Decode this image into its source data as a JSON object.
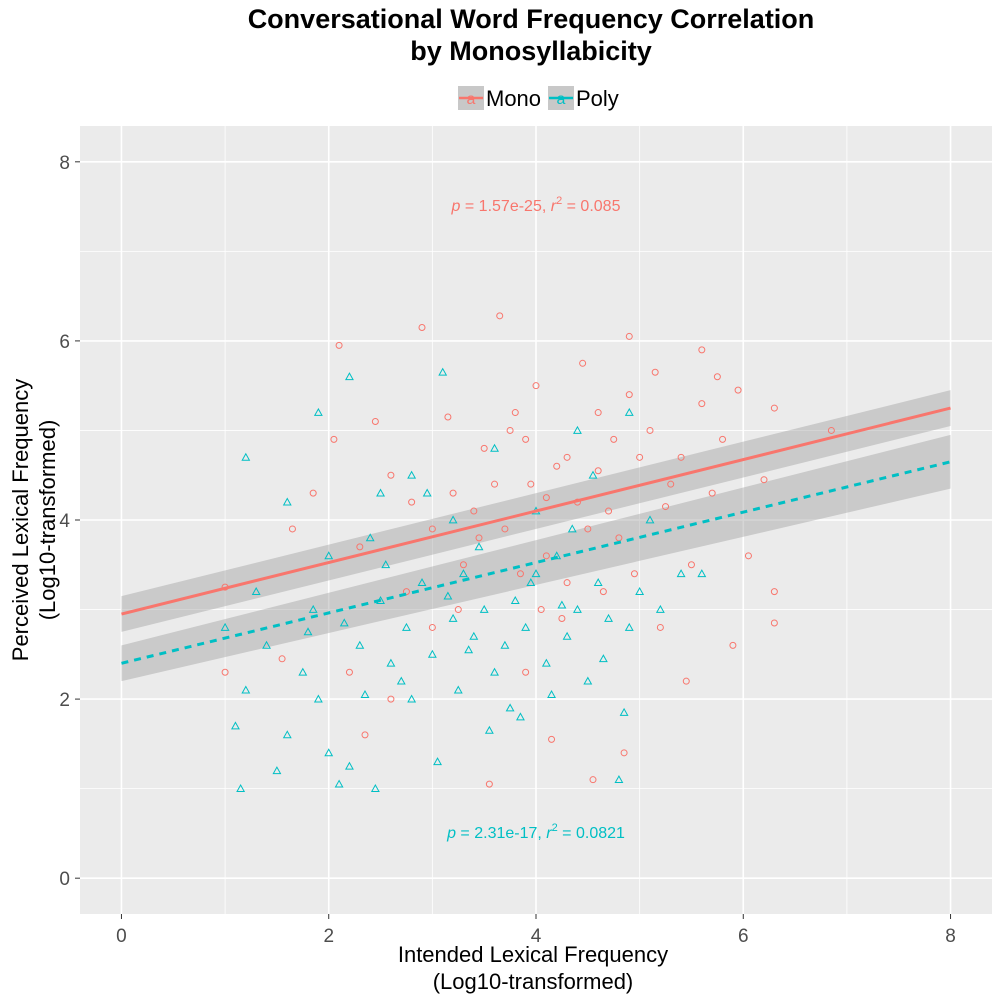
{
  "chart_data": {
    "type": "scatter",
    "title": [
      "Conversational Word Frequency Correlation",
      "by Monosyllabicity"
    ],
    "xlabel": [
      "Intended Lexical Frequency",
      "(Log10-transformed)"
    ],
    "ylabel": [
      "Perceived Lexical Frequency",
      "(Log10-transformed)"
    ],
    "xlim": [
      -0.4,
      8.4
    ],
    "ylim": [
      -0.4,
      8.4
    ],
    "x_ticks": [
      "0",
      "2",
      "4",
      "6",
      "8"
    ],
    "y_ticks": [
      "0",
      "2",
      "4",
      "6",
      "8"
    ],
    "grid": true,
    "legend_position": "top",
    "legend_glyph": "a",
    "series": [
      {
        "name": "Mono",
        "marker": "circle",
        "color": "#f8766d",
        "regression": {
          "x": [
            0,
            8
          ],
          "y": [
            2.95,
            5.25
          ],
          "ci_start": [
            2.75,
            3.15
          ],
          "ci_end": [
            5.05,
            5.45
          ],
          "linestyle": "solid"
        },
        "annotation": {
          "p": "1.57e-25",
          "r2": "0.085",
          "x": 4.0,
          "y": 7.45
        },
        "points": [
          [
            3.2,
            4.3
          ],
          [
            3.5,
            4.8
          ],
          [
            4.2,
            4.6
          ],
          [
            4.6,
            5.2
          ],
          [
            5.0,
            4.7
          ],
          [
            3.7,
            3.9
          ],
          [
            4.1,
            3.6
          ],
          [
            2.8,
            4.2
          ],
          [
            5.3,
            4.4
          ],
          [
            4.8,
            3.8
          ],
          [
            2.3,
            3.7
          ],
          [
            3.4,
            4.1
          ],
          [
            4.4,
            4.2
          ],
          [
            3.9,
            4.9
          ],
          [
            5.6,
            5.3
          ],
          [
            4.0,
            5.5
          ],
          [
            3.3,
            3.5
          ],
          [
            4.7,
            4.1
          ],
          [
            2.6,
            4.5
          ],
          [
            5.1,
            5.0
          ],
          [
            4.3,
            3.3
          ],
          [
            3.6,
            4.4
          ],
          [
            4.9,
            5.4
          ],
          [
            3.0,
            3.9
          ],
          [
            5.8,
            4.9
          ],
          [
            4.5,
            3.9
          ],
          [
            3.8,
            5.2
          ],
          [
            2.1,
            5.95
          ],
          [
            2.9,
            6.15
          ],
          [
            3.65,
            6.28
          ],
          [
            4.9,
            6.05
          ],
          [
            5.6,
            5.9
          ],
          [
            6.85,
            5.0
          ],
          [
            6.3,
            5.25
          ],
          [
            6.3,
            2.85
          ],
          [
            6.3,
            3.2
          ],
          [
            6.05,
            3.6
          ],
          [
            5.45,
            2.2
          ],
          [
            4.55,
            1.1
          ],
          [
            4.15,
            1.55
          ],
          [
            3.55,
            1.05
          ],
          [
            1.0,
            2.3
          ],
          [
            1.0,
            3.25
          ],
          [
            1.55,
            2.45
          ],
          [
            1.85,
            4.3
          ],
          [
            2.35,
            1.6
          ],
          [
            2.6,
            2.0
          ],
          [
            5.9,
            2.6
          ],
          [
            4.85,
            1.4
          ],
          [
            2.2,
            2.3
          ],
          [
            3.0,
            2.8
          ],
          [
            3.9,
            2.3
          ],
          [
            5.2,
            2.8
          ],
          [
            5.7,
            4.3
          ],
          [
            6.2,
            4.45
          ],
          [
            4.1,
            4.25
          ],
          [
            4.3,
            4.7
          ],
          [
            4.6,
            4.55
          ],
          [
            3.95,
            4.4
          ],
          [
            5.25,
            4.15
          ],
          [
            2.75,
            3.2
          ],
          [
            3.25,
            3.0
          ],
          [
            5.5,
            3.5
          ],
          [
            4.25,
            2.9
          ],
          [
            5.75,
            5.6
          ],
          [
            5.15,
            5.65
          ],
          [
            1.65,
            3.9
          ],
          [
            2.05,
            4.9
          ],
          [
            4.45,
            5.75
          ],
          [
            3.15,
            5.15
          ],
          [
            3.75,
            5.0
          ],
          [
            4.75,
            4.9
          ],
          [
            3.45,
            3.8
          ],
          [
            4.65,
            3.2
          ],
          [
            5.4,
            4.7
          ],
          [
            5.95,
            5.45
          ],
          [
            2.45,
            5.1
          ],
          [
            3.85,
            3.4
          ],
          [
            4.05,
            3.0
          ],
          [
            4.95,
            3.4
          ]
        ]
      },
      {
        "name": "Poly",
        "marker": "triangle",
        "color": "#00bfc4",
        "regression": {
          "x": [
            0,
            8
          ],
          "y": [
            2.4,
            4.65
          ],
          "ci_start": [
            2.2,
            2.6
          ],
          "ci_end": [
            4.35,
            4.95
          ],
          "linestyle": "dashed"
        },
        "annotation": {
          "p": "2.31e-17",
          "r2": "0.0821",
          "x": 4.0,
          "y": 0.45
        },
        "points": [
          [
            1.0,
            2.8
          ],
          [
            1.1,
            1.7
          ],
          [
            1.15,
            1.0
          ],
          [
            1.2,
            2.1
          ],
          [
            1.4,
            2.6
          ],
          [
            1.5,
            1.2
          ],
          [
            1.6,
            1.6
          ],
          [
            1.75,
            2.3
          ],
          [
            1.8,
            2.75
          ],
          [
            1.9,
            2.0
          ],
          [
            2.0,
            1.4
          ],
          [
            2.1,
            1.05
          ],
          [
            2.2,
            1.25
          ],
          [
            2.3,
            2.6
          ],
          [
            2.45,
            1.0
          ],
          [
            2.5,
            3.1
          ],
          [
            2.6,
            2.4
          ],
          [
            2.7,
            2.2
          ],
          [
            2.8,
            2.0
          ],
          [
            2.9,
            3.3
          ],
          [
            3.0,
            2.5
          ],
          [
            3.05,
            1.3
          ],
          [
            3.2,
            2.9
          ],
          [
            3.3,
            3.4
          ],
          [
            3.4,
            2.7
          ],
          [
            3.5,
            3.0
          ],
          [
            3.6,
            2.3
          ],
          [
            3.7,
            2.6
          ],
          [
            3.75,
            1.9
          ],
          [
            3.8,
            3.1
          ],
          [
            3.9,
            2.8
          ],
          [
            4.0,
            3.4
          ],
          [
            4.1,
            2.4
          ],
          [
            4.2,
            3.6
          ],
          [
            4.3,
            2.7
          ],
          [
            4.4,
            3.0
          ],
          [
            4.5,
            2.2
          ],
          [
            4.6,
            3.3
          ],
          [
            4.7,
            2.9
          ],
          [
            4.8,
            1.1
          ],
          [
            4.85,
            1.85
          ],
          [
            4.9,
            2.8
          ],
          [
            5.0,
            3.2
          ],
          [
            5.2,
            3.0
          ],
          [
            5.4,
            3.4
          ],
          [
            5.6,
            3.4
          ],
          [
            3.1,
            5.65
          ],
          [
            2.2,
            5.6
          ],
          [
            1.9,
            5.2
          ],
          [
            2.5,
            4.3
          ],
          [
            2.8,
            4.5
          ],
          [
            3.2,
            4.0
          ],
          [
            3.6,
            4.8
          ],
          [
            4.0,
            4.1
          ],
          [
            4.4,
            5.0
          ],
          [
            4.9,
            5.2
          ],
          [
            2.0,
            3.6
          ],
          [
            2.4,
            3.8
          ],
          [
            1.3,
            3.2
          ],
          [
            1.6,
            4.2
          ],
          [
            1.2,
            4.7
          ],
          [
            2.75,
            2.8
          ],
          [
            3.25,
            2.1
          ],
          [
            3.55,
            1.65
          ],
          [
            3.85,
            1.8
          ],
          [
            4.15,
            2.05
          ],
          [
            4.65,
            2.45
          ],
          [
            2.15,
            2.85
          ],
          [
            2.55,
            3.5
          ],
          [
            3.45,
            3.7
          ],
          [
            3.95,
            3.3
          ],
          [
            4.35,
            3.9
          ],
          [
            1.85,
            3.0
          ],
          [
            2.35,
            2.05
          ],
          [
            3.15,
            3.15
          ],
          [
            4.55,
            4.5
          ],
          [
            5.1,
            4.0
          ],
          [
            2.95,
            4.3
          ],
          [
            3.35,
            2.55
          ],
          [
            4.25,
            3.05
          ]
        ]
      }
    ]
  }
}
